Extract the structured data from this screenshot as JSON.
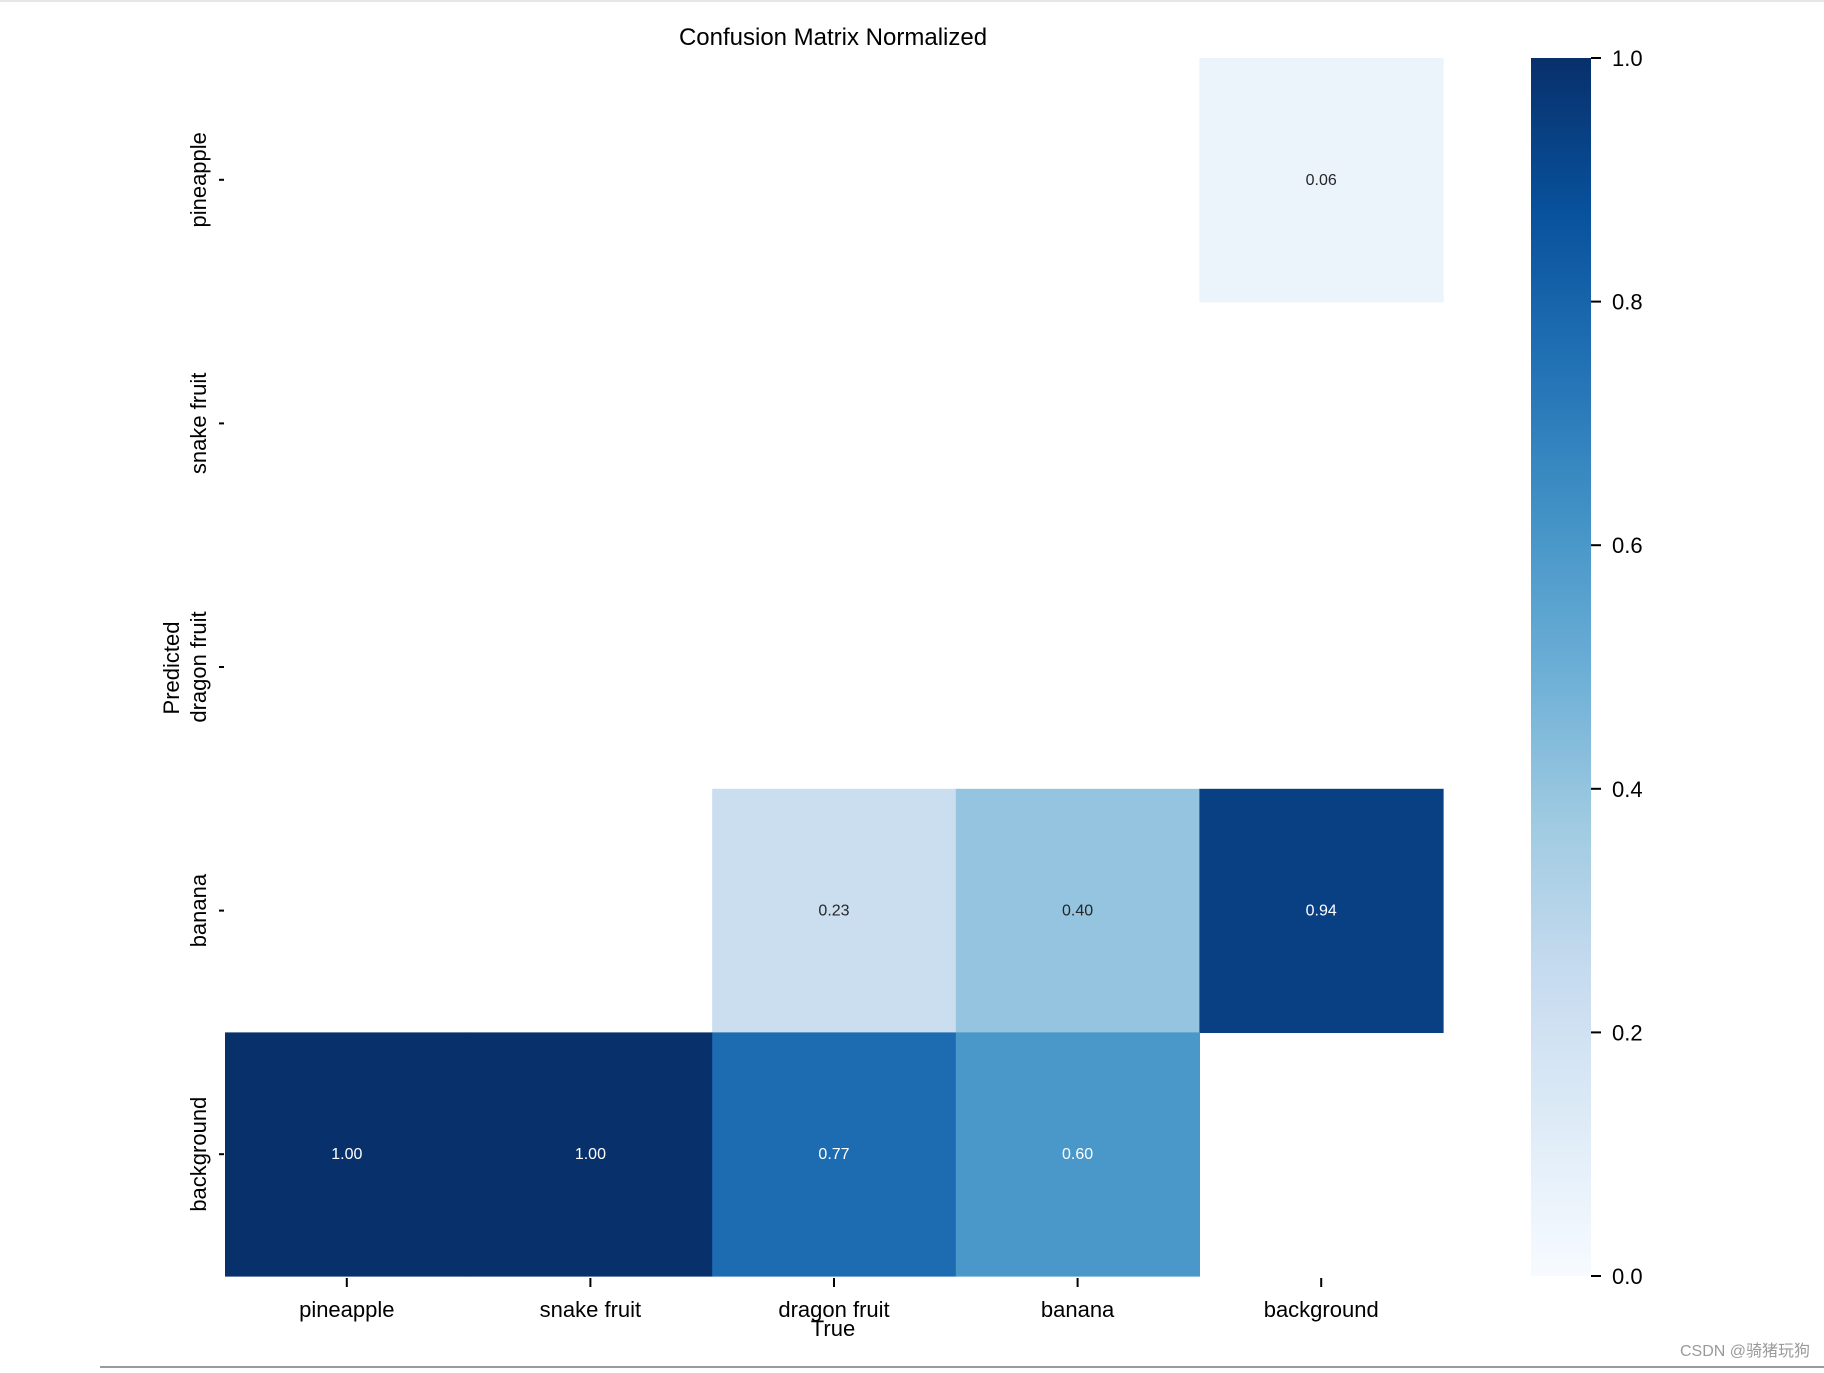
{
  "chart_data": {
    "type": "heatmap",
    "title": "Confusion Matrix Normalized",
    "xlabel": "True",
    "ylabel": "Predicted",
    "x_categories": [
      "pineapple",
      "snake fruit",
      "dragon fruit",
      "banana",
      "background"
    ],
    "y_categories": [
      "pineapple",
      "snake fruit",
      "dragon fruit",
      "banana",
      "background"
    ],
    "matrix": [
      [
        null,
        null,
        null,
        null,
        0.06
      ],
      [
        null,
        null,
        null,
        null,
        null
      ],
      [
        null,
        null,
        null,
        null,
        null
      ],
      [
        null,
        null,
        0.23,
        0.4,
        0.94
      ],
      [
        1.0,
        1.0,
        0.77,
        0.6,
        null
      ]
    ],
    "colormap": "Blues",
    "vmin": 0.0,
    "vmax": 1.0,
    "colorbar_ticks": [
      "0.0",
      "0.2",
      "0.4",
      "0.6",
      "0.8",
      "1.0"
    ]
  },
  "watermark": "CSDN @骑猪玩狗"
}
